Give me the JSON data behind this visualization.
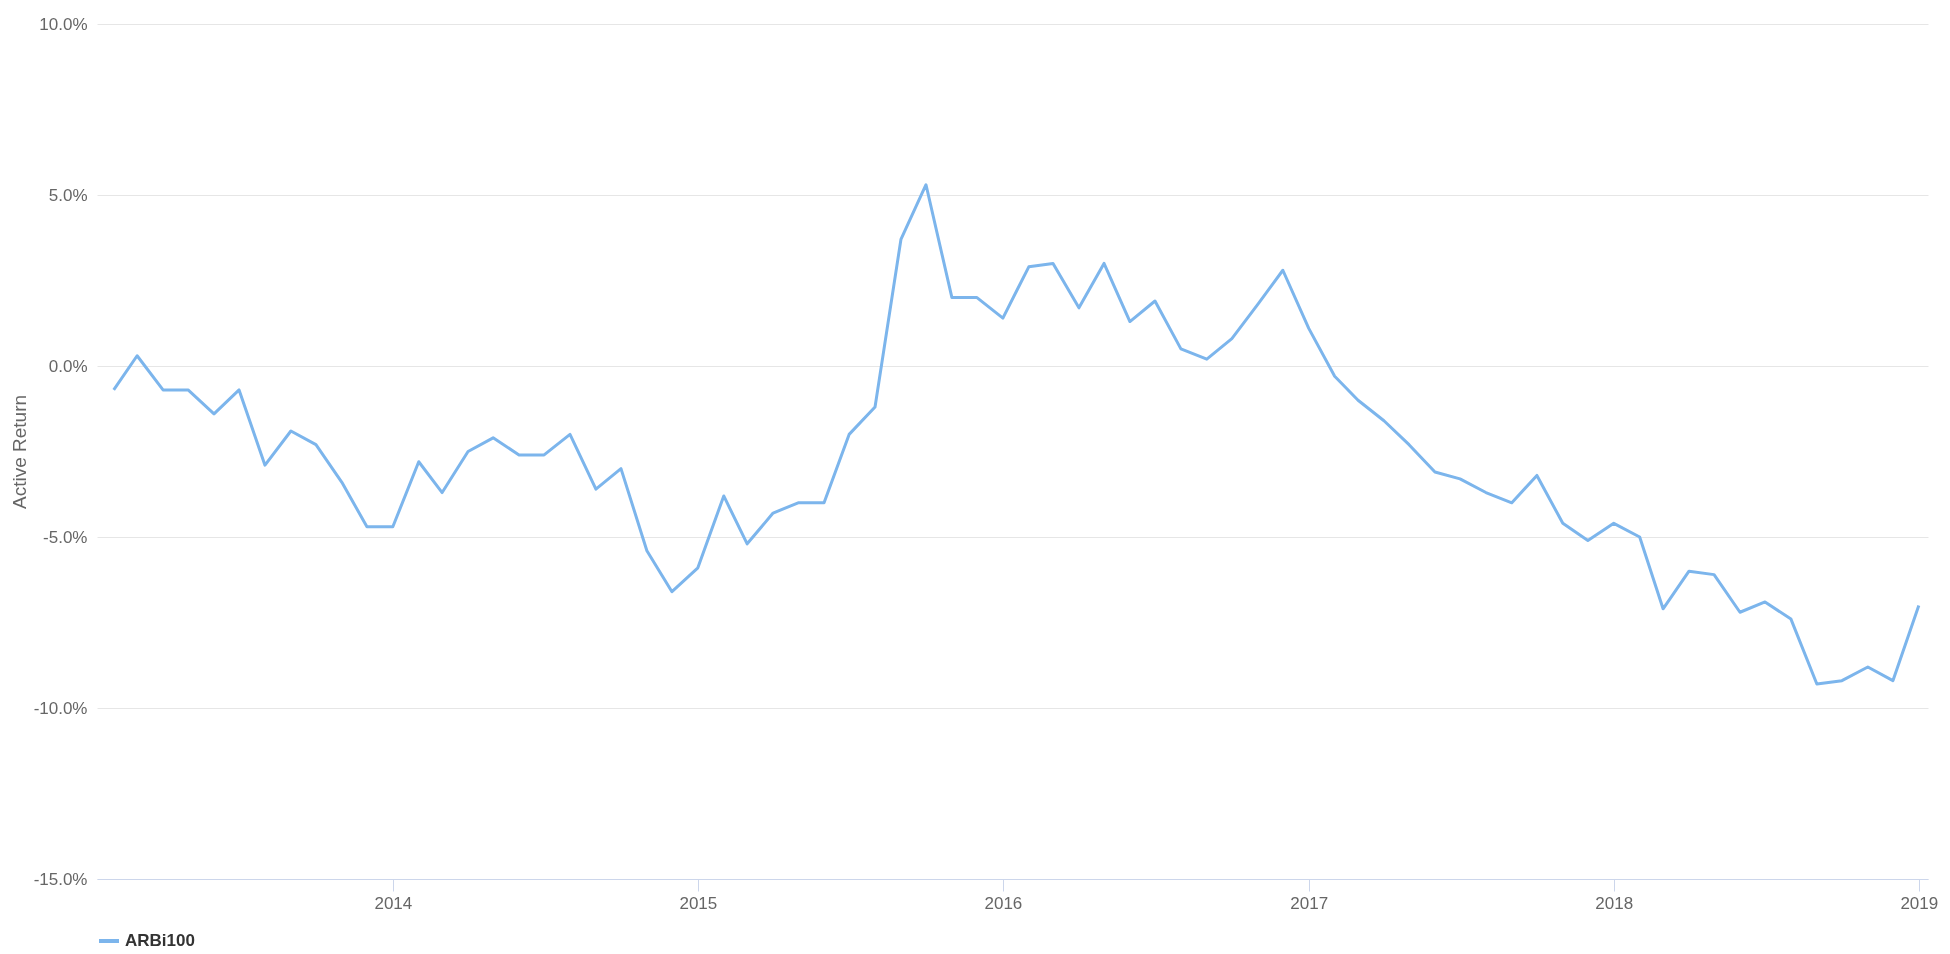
{
  "chart_data": {
    "type": "line",
    "ylabel": "Active Return",
    "x": [
      "2013-02",
      "2013-03",
      "2013-04",
      "2013-05",
      "2013-06",
      "2013-07",
      "2013-08",
      "2013-09",
      "2013-10",
      "2013-11",
      "2013-12",
      "2014-01",
      "2014-02",
      "2014-03",
      "2014-04",
      "2014-05",
      "2014-06",
      "2014-07",
      "2014-08",
      "2014-09",
      "2014-10",
      "2014-11",
      "2014-12",
      "2015-01",
      "2015-02",
      "2015-03",
      "2015-04",
      "2015-05",
      "2015-06",
      "2015-07",
      "2015-08",
      "2015-09",
      "2015-10",
      "2015-11",
      "2015-12",
      "2016-01",
      "2016-02",
      "2016-03",
      "2016-04",
      "2016-05",
      "2016-06",
      "2016-07",
      "2016-08",
      "2016-09",
      "2016-10",
      "2016-11",
      "2016-12",
      "2017-01",
      "2017-02",
      "2017-03",
      "2017-04",
      "2017-05",
      "2017-06",
      "2017-07",
      "2017-08",
      "2017-09",
      "2017-10",
      "2017-11",
      "2017-12",
      "2018-01",
      "2018-02",
      "2018-03",
      "2018-04",
      "2018-05",
      "2018-06",
      "2018-07",
      "2018-08",
      "2018-09",
      "2018-10",
      "2018-11",
      "2018-12",
      "2019-01"
    ],
    "series": [
      {
        "name": "ARBi100",
        "color": "#7cb5ec",
        "values": [
          -0.7,
          0.3,
          -0.7,
          -0.7,
          -1.4,
          -0.7,
          -2.9,
          -1.9,
          -2.3,
          -3.4,
          -4.7,
          -4.7,
          -2.8,
          -3.7,
          -2.5,
          -2.1,
          -2.6,
          -2.6,
          -2.0,
          -3.6,
          -3.0,
          -5.4,
          -6.6,
          -5.9,
          -3.8,
          -5.2,
          -4.3,
          -4.0,
          -4.0,
          -2.0,
          -1.2,
          3.7,
          5.3,
          2.0,
          2.0,
          1.4,
          2.9,
          3.0,
          1.7,
          3.0,
          1.3,
          1.9,
          0.5,
          0.2,
          0.8,
          1.8,
          2.8,
          1.1,
          -0.3,
          -1.0,
          -1.6,
          -2.3,
          -3.1,
          -3.3,
          -3.7,
          -4.0,
          -3.2,
          -4.6,
          -5.1,
          -4.6,
          -5.0,
          -7.1,
          -6.0,
          -6.1,
          -7.2,
          -6.9,
          -7.4,
          -9.3,
          -9.2,
          -8.8,
          -9.2,
          -7.0
        ]
      }
    ],
    "xlim": [
      "2013-01-12",
      "2019-01-12"
    ],
    "xticks": [
      "2014",
      "2015",
      "2016",
      "2017",
      "2018",
      "2019"
    ],
    "ylim": [
      -15,
      10
    ],
    "yticks": [
      {
        "value": -15,
        "label": "-15.0%"
      },
      {
        "value": -10,
        "label": "-10.0%"
      },
      {
        "value": -5,
        "label": "-5.0%"
      },
      {
        "value": 0,
        "label": "0.0%"
      },
      {
        "value": 5,
        "label": "5.0%"
      },
      {
        "value": 10,
        "label": "10.0%"
      }
    ],
    "grid": "y",
    "legend": "bottom",
    "marker": "none",
    "line_style": "solid"
  }
}
